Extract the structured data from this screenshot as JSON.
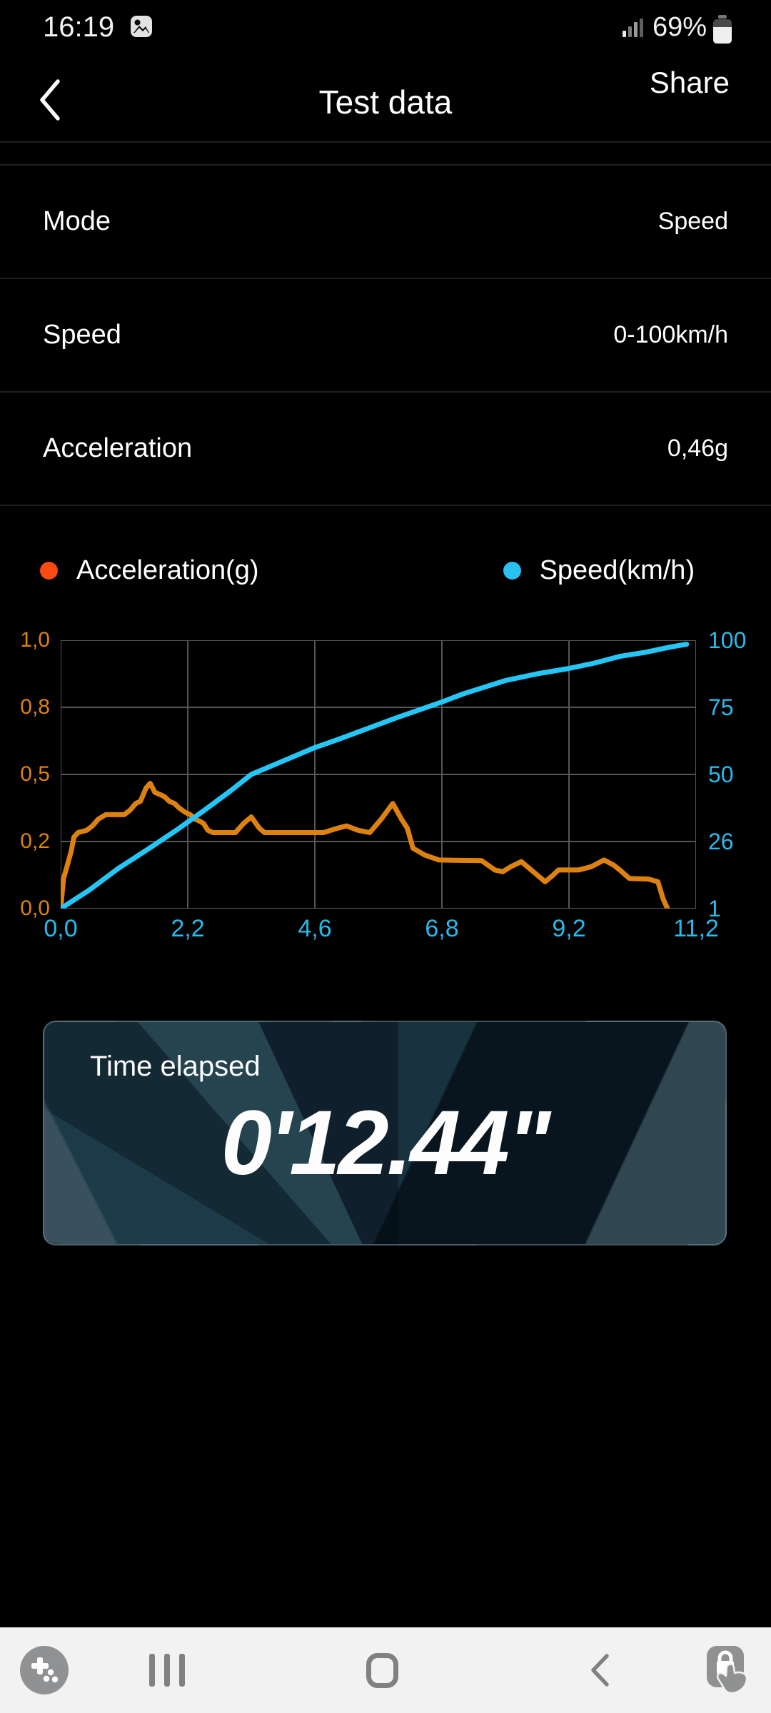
{
  "status_bar": {
    "time": "16:19",
    "battery_percent": "69%",
    "battery_level": 69,
    "icons": [
      "gallery-notification",
      "signal-strength",
      "battery"
    ]
  },
  "header": {
    "title": "Test data",
    "share_label": "Share",
    "back_icon": "chevron-left"
  },
  "info_rows": [
    {
      "label": "Mode",
      "value": "Speed"
    },
    {
      "label": "Speed",
      "value": "0-100km/h"
    },
    {
      "label": "Acceleration",
      "value": "0,46g"
    }
  ],
  "legend": [
    {
      "label": "Acceleration(g)",
      "color": "#fb4a12"
    },
    {
      "label": "Speed(km/h)",
      "color": "#29c1f0"
    }
  ],
  "chart_data": {
    "type": "line",
    "grid": true,
    "plot_bg": "#000000",
    "grid_color": "#565656",
    "x_axis": {
      "tick_values": [
        0,
        2.2,
        4.6,
        6.8,
        9.2,
        11.2
      ],
      "tick_labels": [
        "0,0",
        "2,2",
        "4,6",
        "6,8",
        "9,2",
        "11,2"
      ],
      "color": "#2ab9ea",
      "unit": "s"
    },
    "y_axis_left": {
      "label": "Acceleration(g)",
      "tick_values": [
        0,
        0.2,
        0.5,
        0.8,
        1.0
      ],
      "tick_labels": [
        "0,0",
        "0,2",
        "0,5",
        "0,8",
        "1,0"
      ],
      "color": "#dd8210"
    },
    "y_axis_right": {
      "label": "Speed(km/h)",
      "tick_values": [
        1,
        26,
        50,
        75,
        100
      ],
      "tick_labels": [
        "1",
        "26",
        "50",
        "75",
        "100"
      ],
      "color": "#2ab9ea"
    },
    "series": [
      {
        "name": "Acceleration(g)",
        "axis": "left",
        "color": "#dd8210",
        "points": [
          [
            0,
            0
          ],
          [
            0.05,
            0.09
          ],
          [
            0.1,
            0.12
          ],
          [
            0.18,
            0.17
          ],
          [
            0.23,
            0.22
          ],
          [
            0.3,
            0.24
          ],
          [
            0.45,
            0.25
          ],
          [
            0.55,
            0.27
          ],
          [
            0.65,
            0.3
          ],
          [
            0.78,
            0.32
          ],
          [
            1.1,
            0.32
          ],
          [
            1.2,
            0.34
          ],
          [
            1.3,
            0.37
          ],
          [
            1.38,
            0.38
          ],
          [
            1.48,
            0.44
          ],
          [
            1.55,
            0.46
          ],
          [
            1.63,
            0.42
          ],
          [
            1.72,
            0.41
          ],
          [
            1.8,
            0.4
          ],
          [
            1.88,
            0.38
          ],
          [
            1.97,
            0.37
          ],
          [
            2.05,
            0.35
          ],
          [
            2.16,
            0.33
          ],
          [
            2.25,
            0.32
          ],
          [
            2.34,
            0.3
          ],
          [
            2.43,
            0.29
          ],
          [
            2.5,
            0.28
          ],
          [
            2.58,
            0.25
          ],
          [
            2.68,
            0.24
          ],
          [
            3.1,
            0.24
          ],
          [
            3.25,
            0.28
          ],
          [
            3.4,
            0.31
          ],
          [
            3.55,
            0.26
          ],
          [
            3.65,
            0.24
          ],
          [
            4.75,
            0.24
          ],
          [
            5.0,
            0.26
          ],
          [
            5.15,
            0.27
          ],
          [
            5.35,
            0.25
          ],
          [
            5.55,
            0.24
          ],
          [
            5.75,
            0.3
          ],
          [
            5.95,
            0.37
          ],
          [
            6.1,
            0.3
          ],
          [
            6.2,
            0.26
          ],
          [
            6.3,
            0.18
          ],
          [
            6.5,
            0.16
          ],
          [
            6.75,
            0.145
          ],
          [
            7.55,
            0.143
          ],
          [
            7.8,
            0.115
          ],
          [
            7.95,
            0.11
          ],
          [
            8.1,
            0.125
          ],
          [
            8.3,
            0.14
          ],
          [
            8.45,
            0.12
          ],
          [
            8.6,
            0.1
          ],
          [
            8.75,
            0.08
          ],
          [
            8.9,
            0.1
          ],
          [
            9.0,
            0.115
          ],
          [
            9.35,
            0.115
          ],
          [
            9.55,
            0.125
          ],
          [
            9.75,
            0.145
          ],
          [
            9.9,
            0.13
          ],
          [
            10.0,
            0.115
          ],
          [
            10.15,
            0.09
          ],
          [
            10.45,
            0.088
          ],
          [
            10.6,
            0.08
          ],
          [
            10.68,
            0.03
          ],
          [
            10.75,
            0
          ]
        ]
      },
      {
        "name": "Speed(km/h)",
        "axis": "right",
        "color": "#25c6f5",
        "points": [
          [
            0,
            1
          ],
          [
            0.5,
            8
          ],
          [
            1,
            16
          ],
          [
            1.5,
            23
          ],
          [
            2,
            30
          ],
          [
            2.5,
            37
          ],
          [
            3,
            44
          ],
          [
            3.4,
            50
          ],
          [
            4,
            55
          ],
          [
            4.6,
            60
          ],
          [
            5,
            63
          ],
          [
            5.5,
            67
          ],
          [
            6,
            71
          ],
          [
            6.4,
            74
          ],
          [
            6.8,
            77
          ],
          [
            7.2,
            80
          ],
          [
            7.6,
            82.5
          ],
          [
            8,
            85
          ],
          [
            8.6,
            87.5
          ],
          [
            9.2,
            89.5
          ],
          [
            9.6,
            91.5
          ],
          [
            10,
            94
          ],
          [
            10.4,
            95.5
          ],
          [
            10.8,
            97.5
          ],
          [
            11.05,
            98.5
          ]
        ]
      }
    ]
  },
  "time_card": {
    "title": "Time elapsed",
    "value": "0'12.44\""
  },
  "nav_bar": {
    "icons": [
      "game-launcher",
      "recents",
      "home",
      "back",
      "touch-lock"
    ]
  },
  "colors": {
    "background": "#000000",
    "nav_bar_bg": "#f2f2f2",
    "nav_icon": "#7f8183",
    "divider": "#202020",
    "accel_accent": "#dd8210",
    "speed_accent": "#25c6f5"
  }
}
